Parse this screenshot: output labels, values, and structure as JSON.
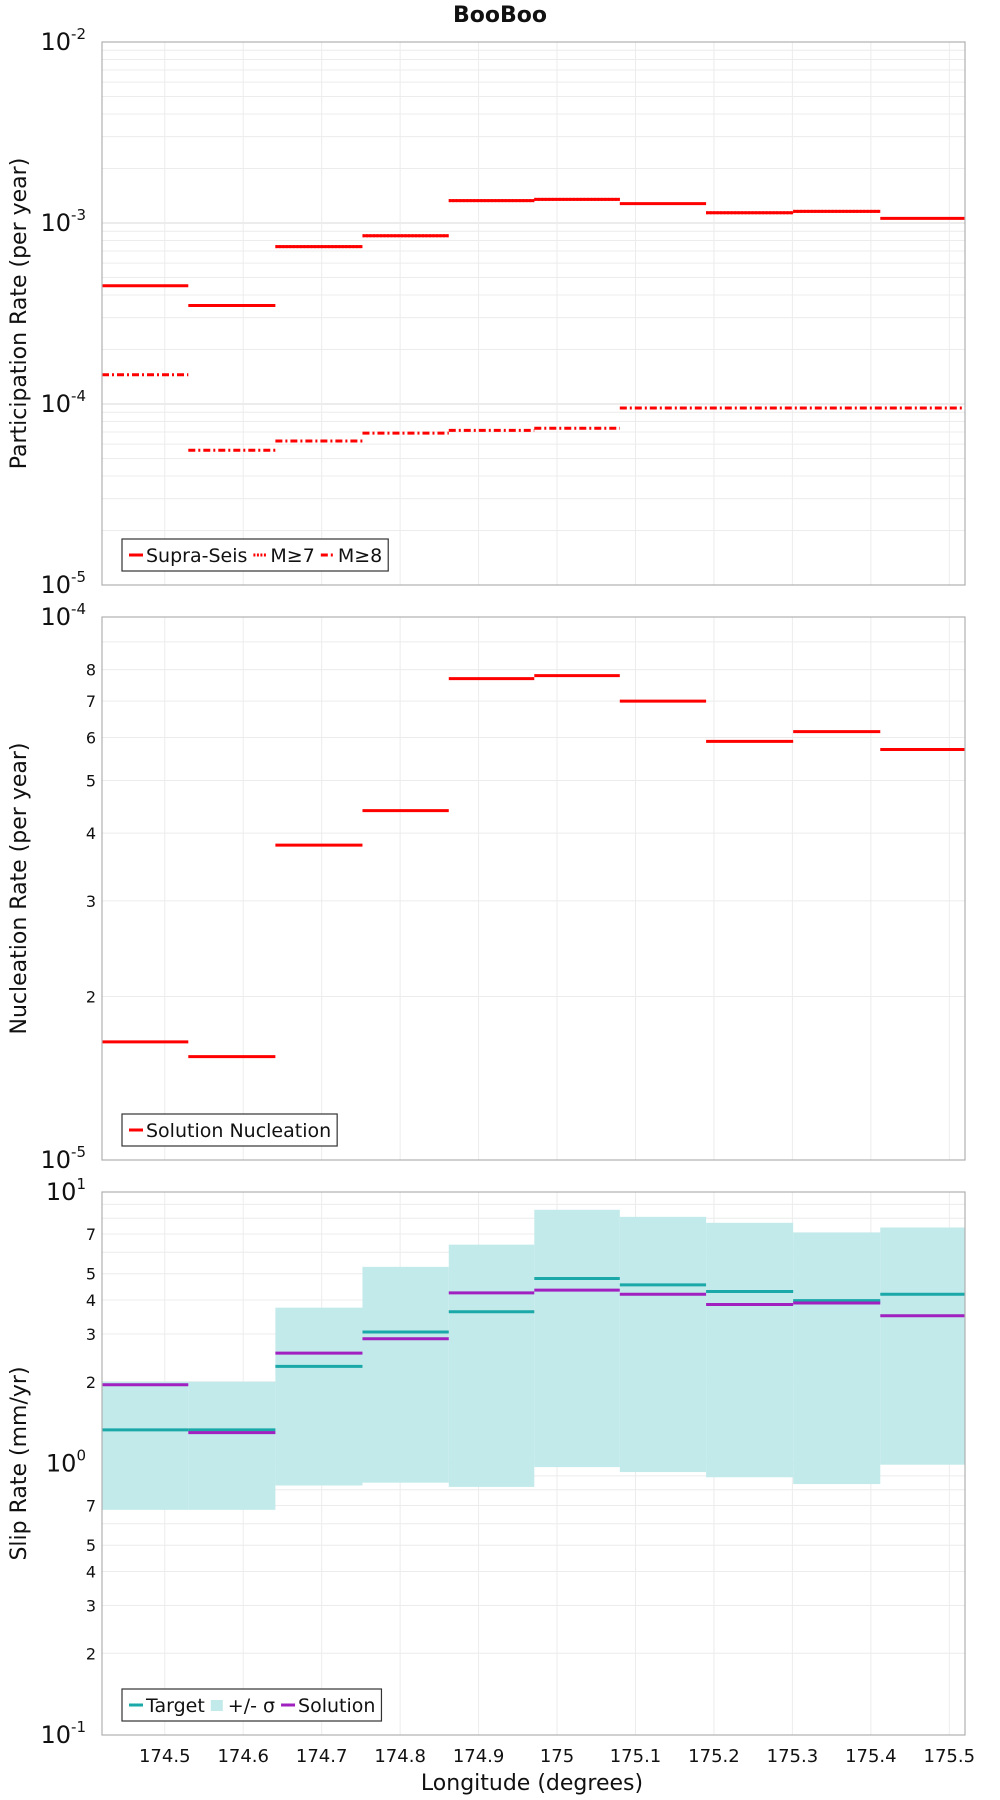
{
  "chart_data": [
    {
      "type": "step",
      "panel": "participation",
      "title": "BooBoo",
      "ylabel": "Participation Rate (per year)",
      "yscale": "log",
      "ylim": [
        1e-05,
        0.01
      ],
      "xlim": [
        174.42,
        175.52
      ],
      "major_ticks": [
        {
          "value": 0.01,
          "base": "10",
          "exp": "-2"
        },
        {
          "value": 0.001,
          "base": "10",
          "exp": "-3"
        },
        {
          "value": 0.0001,
          "base": "10",
          "exp": "-4"
        },
        {
          "value": 1e-05,
          "base": "10",
          "exp": "-5"
        }
      ],
      "series": [
        {
          "name": "Supra-Seis",
          "style": "solid",
          "color": "#ff0000",
          "segments": [
            {
              "x0": 174.42,
              "x1": 174.53,
              "y": 0.00045
            },
            {
              "x0": 174.53,
              "x1": 174.641,
              "y": 0.00035
            },
            {
              "x0": 174.641,
              "x1": 174.752,
              "y": 0.00074
            },
            {
              "x0": 174.752,
              "x1": 174.862,
              "y": 0.00085
            },
            {
              "x0": 174.862,
              "x1": 174.971,
              "y": 0.00133
            },
            {
              "x0": 174.971,
              "x1": 175.08,
              "y": 0.00135
            },
            {
              "x0": 175.08,
              "x1": 175.19,
              "y": 0.00128
            },
            {
              "x0": 175.19,
              "x1": 175.301,
              "y": 0.00114
            },
            {
              "x0": 175.301,
              "x1": 175.412,
              "y": 0.00116
            },
            {
              "x0": 175.412,
              "x1": 175.52,
              "y": 0.00106
            }
          ]
        },
        {
          "name": "M≥7",
          "style": "dotted",
          "color": "#ff0000",
          "segments": [
            {
              "x0": 174.641,
              "x1": 174.752,
              "y": 0.00074
            },
            {
              "x0": 174.752,
              "x1": 174.862,
              "y": 0.00085
            },
            {
              "x0": 174.862,
              "x1": 174.971,
              "y": 0.00133
            },
            {
              "x0": 174.971,
              "x1": 175.08,
              "y": 0.00135
            },
            {
              "x0": 175.19,
              "x1": 175.301,
              "y": 0.00114
            },
            {
              "x0": 175.301,
              "x1": 175.412,
              "y": 0.00116
            }
          ]
        },
        {
          "name": "M≥8",
          "style": "dashdot",
          "color": "#ff0000",
          "segments": [
            {
              "x0": 174.42,
              "x1": 174.53,
              "y": 0.000145
            },
            {
              "x0": 174.53,
              "x1": 174.641,
              "y": 5.55e-05
            },
            {
              "x0": 174.641,
              "x1": 174.752,
              "y": 6.25e-05
            },
            {
              "x0": 174.752,
              "x1": 174.862,
              "y": 6.9e-05
            },
            {
              "x0": 174.862,
              "x1": 174.971,
              "y": 7.15e-05
            },
            {
              "x0": 174.971,
              "x1": 175.08,
              "y": 7.35e-05
            },
            {
              "x0": 175.08,
              "x1": 175.52,
              "y": 9.5e-05
            }
          ]
        }
      ],
      "legend": {
        "position": "bottom-left",
        "entries": [
          "Supra-Seis",
          "M≥7",
          "M≥8"
        ]
      }
    },
    {
      "type": "step",
      "panel": "nucleation",
      "ylabel": "Nucleation Rate (per year)",
      "yscale": "log",
      "ylim": [
        1e-05,
        0.0001
      ],
      "xlim": [
        174.42,
        175.52
      ],
      "major_ticks": [
        {
          "value": 0.0001,
          "base": "10",
          "exp": "-4"
        },
        {
          "value": 1e-05,
          "base": "10",
          "exp": "-5"
        }
      ],
      "minor_labels": [
        {
          "value": 8e-05,
          "label": "8"
        },
        {
          "value": 7e-05,
          "label": "7"
        },
        {
          "value": 6e-05,
          "label": "6"
        },
        {
          "value": 5e-05,
          "label": "5"
        },
        {
          "value": 4e-05,
          "label": "4"
        },
        {
          "value": 3e-05,
          "label": "3"
        },
        {
          "value": 2e-05,
          "label": "2"
        }
      ],
      "series": [
        {
          "name": "Solution Nucleation",
          "style": "solid",
          "color": "#ff0000",
          "segments": [
            {
              "x0": 174.42,
              "x1": 174.53,
              "y": 1.65e-05
            },
            {
              "x0": 174.53,
              "x1": 174.641,
              "y": 1.55e-05
            },
            {
              "x0": 174.641,
              "x1": 174.752,
              "y": 3.8e-05
            },
            {
              "x0": 174.752,
              "x1": 174.862,
              "y": 4.4e-05
            },
            {
              "x0": 174.862,
              "x1": 174.971,
              "y": 7.7e-05
            },
            {
              "x0": 174.971,
              "x1": 175.08,
              "y": 7.8e-05
            },
            {
              "x0": 175.08,
              "x1": 175.19,
              "y": 7e-05
            },
            {
              "x0": 175.19,
              "x1": 175.301,
              "y": 5.9e-05
            },
            {
              "x0": 175.301,
              "x1": 175.412,
              "y": 6.15e-05
            },
            {
              "x0": 175.412,
              "x1": 175.52,
              "y": 5.7e-05
            }
          ]
        }
      ],
      "legend": {
        "position": "bottom-left",
        "entries": [
          "Solution Nucleation"
        ]
      }
    },
    {
      "type": "step",
      "panel": "slip",
      "ylabel": "Slip Rate (mm/yr)",
      "xlabel": "Longitude (degrees)",
      "yscale": "log",
      "ylim": [
        0.1,
        10
      ],
      "xlim": [
        174.42,
        175.52
      ],
      "xticks": [
        174.5,
        174.6,
        174.7,
        174.8,
        174.9,
        175,
        175.1,
        175.2,
        175.3,
        175.4,
        175.5
      ],
      "xtick_labels": [
        "174.5",
        "174.6",
        "174.7",
        "174.8",
        "174.9",
        "175",
        "175.1",
        "175.2",
        "175.3",
        "175.4",
        "175.5"
      ],
      "major_ticks": [
        {
          "value": 10,
          "base": "10",
          "exp": "1"
        },
        {
          "value": 1,
          "base": "10",
          "exp": "0"
        },
        {
          "value": 0.1,
          "base": "10",
          "exp": "-1"
        }
      ],
      "minor_labels": [
        {
          "value": 7,
          "label": "7"
        },
        {
          "value": 5,
          "label": "5"
        },
        {
          "value": 4,
          "label": "4"
        },
        {
          "value": 3,
          "label": "3"
        },
        {
          "value": 2,
          "label": "2"
        },
        {
          "value": 0.7,
          "label": "7"
        },
        {
          "value": 0.5,
          "label": "5"
        },
        {
          "value": 0.4,
          "label": "4"
        },
        {
          "value": 0.3,
          "label": "3"
        },
        {
          "value": 0.2,
          "label": "2"
        }
      ],
      "band": {
        "name": "+/- σ",
        "color": "#c2eaea",
        "segments": [
          {
            "x0": 174.42,
            "x1": 174.53,
            "low": 0.675,
            "high": 2.0
          },
          {
            "x0": 174.53,
            "x1": 174.641,
            "low": 0.675,
            "high": 2.0
          },
          {
            "x0": 174.641,
            "x1": 174.752,
            "low": 0.83,
            "high": 3.75
          },
          {
            "x0": 174.752,
            "x1": 174.862,
            "low": 0.85,
            "high": 5.3
          },
          {
            "x0": 174.862,
            "x1": 174.971,
            "low": 0.82,
            "high": 6.4
          },
          {
            "x0": 174.971,
            "x1": 175.08,
            "low": 0.97,
            "high": 8.6
          },
          {
            "x0": 175.08,
            "x1": 175.19,
            "low": 0.93,
            "high": 8.1
          },
          {
            "x0": 175.19,
            "x1": 175.301,
            "low": 0.89,
            "high": 7.7
          },
          {
            "x0": 175.301,
            "x1": 175.412,
            "low": 0.84,
            "high": 7.1
          },
          {
            "x0": 175.412,
            "x1": 175.52,
            "low": 0.99,
            "high": 7.4
          }
        ]
      },
      "series": [
        {
          "name": "Target",
          "style": "solid",
          "color": "#1aa8a8",
          "segments": [
            {
              "x0": 174.42,
              "x1": 174.53,
              "y": 1.33
            },
            {
              "x0": 174.53,
              "x1": 174.641,
              "y": 1.33
            },
            {
              "x0": 174.641,
              "x1": 174.752,
              "y": 2.28
            },
            {
              "x0": 174.752,
              "x1": 174.862,
              "y": 3.05
            },
            {
              "x0": 174.862,
              "x1": 174.971,
              "y": 3.62
            },
            {
              "x0": 174.971,
              "x1": 175.08,
              "y": 4.8
            },
            {
              "x0": 175.08,
              "x1": 175.19,
              "y": 4.55
            },
            {
              "x0": 175.19,
              "x1": 175.301,
              "y": 4.3
            },
            {
              "x0": 175.301,
              "x1": 175.412,
              "y": 3.98
            },
            {
              "x0": 175.412,
              "x1": 175.52,
              "y": 4.2
            }
          ]
        },
        {
          "name": "Solution",
          "style": "solid",
          "color": "#a020c0",
          "segments": [
            {
              "x0": 174.42,
              "x1": 174.53,
              "y": 1.95
            },
            {
              "x0": 174.53,
              "x1": 174.641,
              "y": 1.3
            },
            {
              "x0": 174.641,
              "x1": 174.752,
              "y": 2.55
            },
            {
              "x0": 174.752,
              "x1": 174.862,
              "y": 2.88
            },
            {
              "x0": 174.862,
              "x1": 174.971,
              "y": 4.25
            },
            {
              "x0": 174.971,
              "x1": 175.08,
              "y": 4.35
            },
            {
              "x0": 175.08,
              "x1": 175.19,
              "y": 4.2
            },
            {
              "x0": 175.19,
              "x1": 175.301,
              "y": 3.85
            },
            {
              "x0": 175.301,
              "x1": 175.412,
              "y": 3.9
            },
            {
              "x0": 175.412,
              "x1": 175.52,
              "y": 3.5
            }
          ]
        }
      ],
      "legend": {
        "position": "bottom-left",
        "entries": [
          "Target",
          "+/- σ",
          "Solution"
        ]
      }
    }
  ]
}
